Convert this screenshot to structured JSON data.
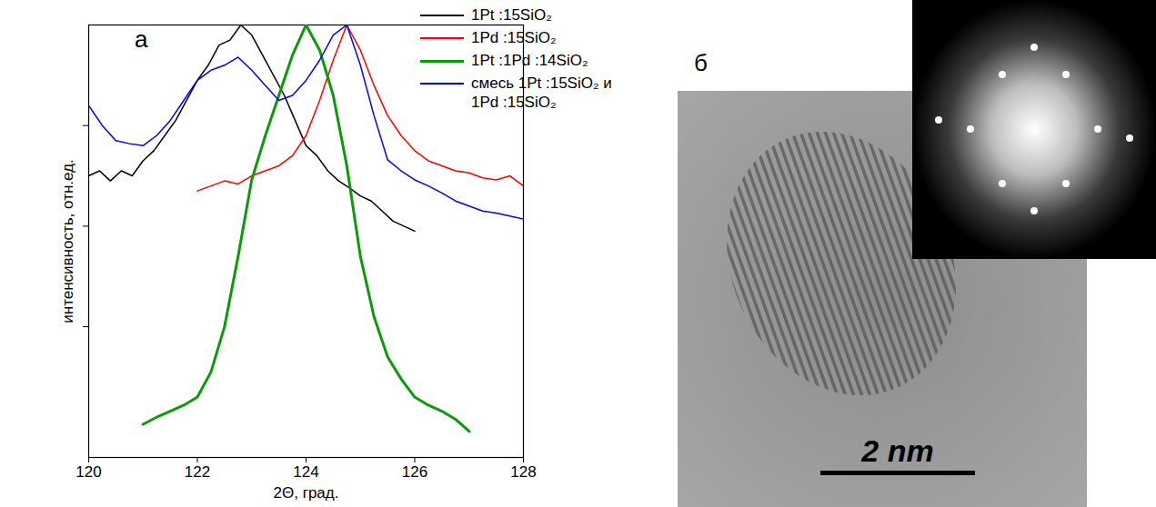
{
  "chart_data": {
    "type": "line",
    "annotations": [
      {
        "text": "а"
      }
    ],
    "xlabel": "2Θ, град.",
    "ylabel": "интенсивность, отн.ед.",
    "xlim": [
      120,
      128
    ],
    "xticks": [
      120,
      122,
      124,
      126,
      128
    ],
    "ylim": [
      0,
      4.3
    ],
    "yticks": [
      1.3,
      2.3,
      3.3
    ],
    "tick_labels": "x",
    "grid": false,
    "legend": "top-right",
    "series": [
      {
        "name": "1Pt :15SiO₂",
        "color": "#000000",
        "x": [
          120,
          120.2,
          120.4,
          120.6,
          120.8,
          121,
          121.2,
          121.4,
          121.6,
          121.8,
          122,
          122.2,
          122.4,
          122.6,
          122.8,
          123,
          123.2,
          123.4,
          123.6,
          123.8,
          124,
          124.2,
          124.4,
          124.6,
          124.8,
          125,
          125.2,
          125.4,
          125.6,
          125.8,
          126
        ],
        "values": [
          2.8,
          2.85,
          2.75,
          2.85,
          2.8,
          2.95,
          3.05,
          3.2,
          3.35,
          3.55,
          3.75,
          3.9,
          4.1,
          4.15,
          4.3,
          4.2,
          4.0,
          3.8,
          3.6,
          3.35,
          3.1,
          3.0,
          2.85,
          2.75,
          2.68,
          2.6,
          2.55,
          2.45,
          2.35,
          2.3,
          2.25
        ]
      },
      {
        "name": "1Pd :15SiO₂",
        "color": "#ff0000",
        "x": [
          122,
          122.25,
          122.5,
          122.75,
          123,
          123.25,
          123.5,
          123.75,
          124,
          124.25,
          124.5,
          124.75,
          125,
          125.25,
          125.5,
          125.75,
          126,
          126.25,
          126.5,
          126.75,
          127,
          127.25,
          127.5,
          127.75,
          128
        ],
        "values": [
          2.65,
          2.7,
          2.75,
          2.72,
          2.8,
          2.85,
          2.9,
          3.0,
          3.2,
          3.55,
          3.95,
          4.3,
          4.05,
          3.7,
          3.4,
          3.2,
          3.05,
          2.95,
          2.9,
          2.85,
          2.83,
          2.78,
          2.76,
          2.8,
          2.7
        ]
      },
      {
        "name": "1Pt :1Pd :14SiO₂",
        "color": "#0a9b0a",
        "x": [
          121,
          121.25,
          121.5,
          121.75,
          122,
          122.25,
          122.5,
          122.75,
          123,
          123.25,
          123.5,
          123.75,
          124,
          124.25,
          124.5,
          124.75,
          125,
          125.25,
          125.5,
          125.75,
          126,
          126.25,
          126.5,
          126.75,
          127
        ],
        "values": [
          0.33,
          0.4,
          0.46,
          0.52,
          0.6,
          0.85,
          1.3,
          2.0,
          2.76,
          3.2,
          3.6,
          4.0,
          4.3,
          4.05,
          3.6,
          2.9,
          2.0,
          1.4,
          1.0,
          0.78,
          0.6,
          0.52,
          0.46,
          0.38,
          0.26
        ]
      },
      {
        "name": "смесь 1Pt :15SiO₂ и 1Pd :15SiO₂",
        "color": "#0000ff",
        "x": [
          120,
          120.25,
          120.5,
          120.75,
          121,
          121.25,
          121.5,
          121.75,
          122,
          122.25,
          122.5,
          122.75,
          123,
          123.25,
          123.5,
          123.75,
          124,
          124.25,
          124.5,
          124.75,
          125,
          125.25,
          125.5,
          125.75,
          126,
          126.25,
          126.5,
          126.75,
          127,
          127.25,
          127.5,
          127.75,
          128
        ],
        "values": [
          3.5,
          3.3,
          3.15,
          3.12,
          3.1,
          3.2,
          3.35,
          3.55,
          3.75,
          3.85,
          3.9,
          3.98,
          3.85,
          3.7,
          3.55,
          3.6,
          3.75,
          3.95,
          4.2,
          4.3,
          3.9,
          3.4,
          2.96,
          2.85,
          2.76,
          2.7,
          2.63,
          2.55,
          2.5,
          2.45,
          2.43,
          2.4,
          2.37
        ]
      }
    ]
  },
  "image": {
    "panel": "б",
    "scale_bar": "2 nm"
  }
}
